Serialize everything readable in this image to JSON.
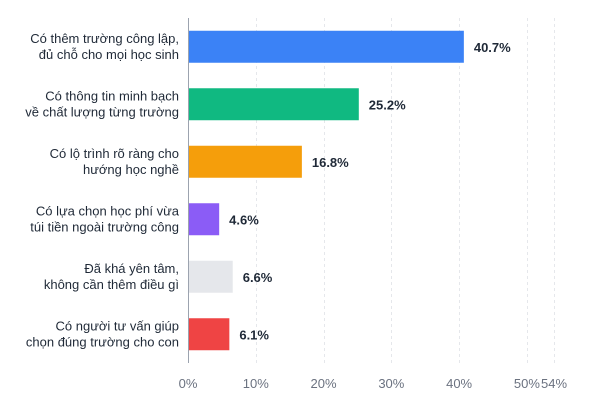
{
  "chart_data": {
    "type": "bar",
    "orientation": "horizontal",
    "title": "",
    "xlabel": "",
    "ylabel": "",
    "categories": [
      [
        "Có thêm trường công lập,",
        "đủ chỗ cho mọi học sinh"
      ],
      [
        "Có thông tin minh bạch",
        "về chất lượng từng trường"
      ],
      [
        "Có lộ trình rõ ràng cho",
        "hướng học nghề"
      ],
      [
        "Có lựa chọn học phí vừa",
        "túi tiền ngoài trường công"
      ],
      [
        "Đã khá yên tâm,",
        "không cần thêm điều gì"
      ],
      [
        "Có người tư vấn giúp",
        "chọn đúng trường cho con"
      ]
    ],
    "values": [
      40.7,
      25.2,
      16.8,
      4.6,
      6.6,
      6.1
    ],
    "value_labels": [
      "40.7%",
      "25.2%",
      "16.8%",
      "4.6%",
      "6.6%",
      "6.1%"
    ],
    "colors": [
      "#3b82f6",
      "#10b981",
      "#f59e0b",
      "#8b5cf6",
      "#e5e7eb",
      "#ef4444"
    ],
    "xlim": [
      0,
      54
    ],
    "xticks": [
      0,
      10,
      20,
      30,
      40,
      50,
      54
    ],
    "xtick_labels": [
      "0%",
      "10%",
      "20%",
      "30%",
      "40%",
      "50%",
      "54%"
    ],
    "grid": true,
    "legend": "none"
  }
}
